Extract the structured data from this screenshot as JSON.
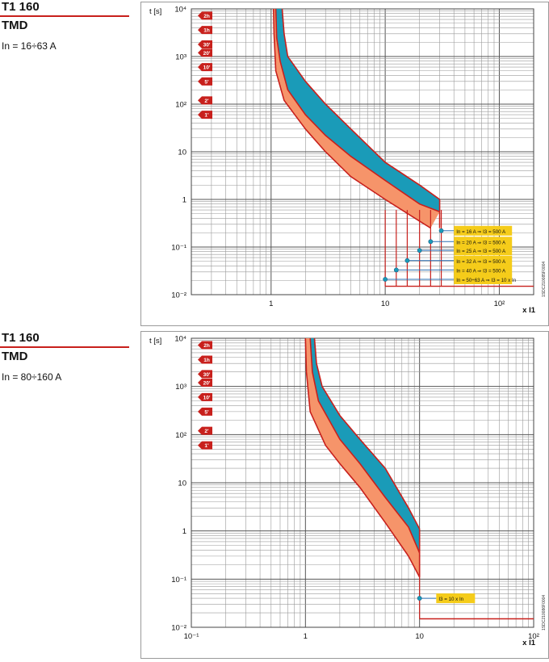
{
  "panels": [
    {
      "model": "T1 160",
      "release": "TMD",
      "rating": "In = 16÷63 A",
      "code": "1SDC210085F0004"
    },
    {
      "model": "T1 160",
      "release": "TMD",
      "rating": "In = 80÷160 A",
      "code": "1SDC210086F0004"
    }
  ],
  "chart_data": [
    {
      "type": "area",
      "ylabel": "t [s]",
      "xlabel": "x I1",
      "x_scale": "log",
      "y_scale": "log",
      "xlim": [
        0.2,
        200
      ],
      "ylim": [
        0.01,
        10000
      ],
      "grid": true,
      "x_ticks": [
        {
          "v": 1,
          "label": "1"
        },
        {
          "v": 10,
          "label": "10"
        },
        {
          "v": 100,
          "label": "10²"
        }
      ],
      "y_ticks": [
        {
          "v": 10000,
          "label": "10⁴"
        },
        {
          "v": 1000,
          "label": "10³"
        },
        {
          "v": 100,
          "label": "10²"
        },
        {
          "v": 10,
          "label": "10"
        },
        {
          "v": 1,
          "label": "1"
        },
        {
          "v": 0.1,
          "label": "10⁻¹"
        },
        {
          "v": 0.01,
          "label": "10⁻²"
        }
      ],
      "time_markers": [
        {
          "label": "2h",
          "t": 7200
        },
        {
          "label": "1h",
          "t": 3600
        },
        {
          "label": "30'",
          "t": 1800
        },
        {
          "label": "20'",
          "t": 1200
        },
        {
          "label": "10'",
          "t": 600
        },
        {
          "label": "5'",
          "t": 300
        },
        {
          "label": "2'",
          "t": 120
        },
        {
          "label": "1'",
          "t": 60
        }
      ],
      "series": [
        {
          "role": "lower_bound",
          "points": [
            [
              1.05,
              10000
            ],
            [
              1.06,
              3000
            ],
            [
              1.1,
              500
            ],
            [
              1.3,
              120
            ],
            [
              2,
              30
            ],
            [
              3,
              10
            ],
            [
              5,
              3
            ],
            [
              10,
              1
            ],
            [
              20,
              0.35
            ],
            [
              25,
              0.25
            ]
          ]
        },
        {
          "role": "mid_bound",
          "points": [
            [
              1.1,
              10000
            ],
            [
              1.12,
              2500
            ],
            [
              1.2,
              800
            ],
            [
              1.4,
              200
            ],
            [
              2,
              60
            ],
            [
              3,
              22
            ],
            [
              5,
              8
            ],
            [
              10,
              2.5
            ],
            [
              20,
              0.8
            ],
            [
              30,
              0.55
            ]
          ]
        },
        {
          "role": "upper_bound",
          "points": [
            [
              1.25,
              10000
            ],
            [
              1.3,
              3000
            ],
            [
              1.4,
              1000
            ],
            [
              2,
              300
            ],
            [
              3,
              100
            ],
            [
              5,
              30
            ],
            [
              10,
              6
            ],
            [
              20,
              2
            ],
            [
              30,
              1
            ]
          ]
        }
      ],
      "colors": {
        "upper_band": "#1a9bb8",
        "lower_band": "#f6946a",
        "stroke": "#c8201c",
        "label_box": "#f5cc1a"
      },
      "instantaneous": [
        {
          "label": "In = 16 A ⇒ I3 = 500 A",
          "x": 31,
          "y": 0.22
        },
        {
          "label": "In = 20 A ⇒ I3 = 500 A",
          "x": 25,
          "y": 0.13
        },
        {
          "label": "In = 25 A ⇒ I3 = 500 A",
          "x": 20,
          "y": 0.085
        },
        {
          "label": "In = 32 A ⇒ I3 = 500 A",
          "x": 15.6,
          "y": 0.052
        },
        {
          "label": "In = 40 A ⇒ I3 = 500 A",
          "x": 12.5,
          "y": 0.033
        },
        {
          "label": "In = 50÷63 A ⇒ I3 = 10 x In",
          "x": 10,
          "y": 0.021
        }
      ],
      "floor_t": 0.015
    },
    {
      "type": "area",
      "ylabel": "t [s]",
      "xlabel": "x I1",
      "x_scale": "log",
      "y_scale": "log",
      "xlim": [
        0.1,
        100
      ],
      "ylim": [
        0.01,
        10000
      ],
      "grid": true,
      "x_ticks": [
        {
          "v": 0.1,
          "label": "10⁻¹"
        },
        {
          "v": 1,
          "label": "1"
        },
        {
          "v": 10,
          "label": "10"
        },
        {
          "v": 100,
          "label": "10²"
        }
      ],
      "y_ticks": [
        {
          "v": 10000,
          "label": "10⁴"
        },
        {
          "v": 1000,
          "label": "10³"
        },
        {
          "v": 100,
          "label": "10²"
        },
        {
          "v": 10,
          "label": "10"
        },
        {
          "v": 1,
          "label": "1"
        },
        {
          "v": 0.1,
          "label": "10⁻¹"
        },
        {
          "v": 0.01,
          "label": "10⁻²"
        }
      ],
      "time_markers": [
        {
          "label": "2h",
          "t": 7200
        },
        {
          "label": "1h",
          "t": 3600
        },
        {
          "label": "30'",
          "t": 1800
        },
        {
          "label": "20'",
          "t": 1200
        },
        {
          "label": "10'",
          "t": 600
        },
        {
          "label": "5'",
          "t": 300
        },
        {
          "label": "2'",
          "t": 120
        },
        {
          "label": "1'",
          "t": 60
        }
      ],
      "series": [
        {
          "role": "lower_bound",
          "points": [
            [
              1.0,
              10000
            ],
            [
              1.02,
              2000
            ],
            [
              1.1,
              300
            ],
            [
              1.5,
              60
            ],
            [
              2,
              25
            ],
            [
              3,
              8
            ],
            [
              5,
              1.5
            ],
            [
              8,
              0.3
            ],
            [
              10,
              0.11
            ]
          ]
        },
        {
          "role": "mid_bound",
          "points": [
            [
              1.1,
              10000
            ],
            [
              1.15,
              2000
            ],
            [
              1.3,
              500
            ],
            [
              2,
              80
            ],
            [
              3,
              25
            ],
            [
              5,
              5
            ],
            [
              8,
              1.2
            ],
            [
              10,
              0.35
            ]
          ]
        },
        {
          "role": "upper_bound",
          "points": [
            [
              1.2,
              10000
            ],
            [
              1.25,
              3000
            ],
            [
              1.4,
              1000
            ],
            [
              2,
              250
            ],
            [
              3,
              80
            ],
            [
              5,
              20
            ],
            [
              8,
              3
            ],
            [
              10,
              1.1
            ]
          ]
        }
      ],
      "colors": {
        "upper_band": "#1a9bb8",
        "lower_band": "#f6946a",
        "stroke": "#c8201c",
        "label_box": "#f5cc1a"
      },
      "instantaneous": [
        {
          "label": "I3 = 10 x In",
          "x": 10,
          "y": 0.04
        }
      ],
      "floor_t": 0.015
    }
  ]
}
